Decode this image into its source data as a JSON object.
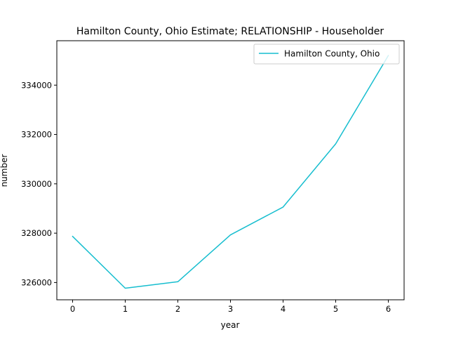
{
  "chart_data": {
    "type": "line",
    "title": "Hamilton County, Ohio Estimate; RELATIONSHIP - Householder",
    "xlabel": "year",
    "ylabel": "number",
    "x": [
      0,
      1,
      2,
      3,
      4,
      5,
      6
    ],
    "series": [
      {
        "name": "Hamilton County, Ohio",
        "color": "#17becf",
        "values": [
          327870,
          325770,
          326030,
          327930,
          329060,
          331620,
          335200
        ]
      }
    ],
    "xlim": [
      -0.3,
      6.3
    ],
    "ylim": [
      325300,
      335800
    ],
    "xticks": [
      "0",
      "1",
      "2",
      "3",
      "4",
      "5",
      "6"
    ],
    "yticks": [
      "326000",
      "328000",
      "330000",
      "332000",
      "334000"
    ],
    "grid": false,
    "legend_position": "top-right"
  }
}
